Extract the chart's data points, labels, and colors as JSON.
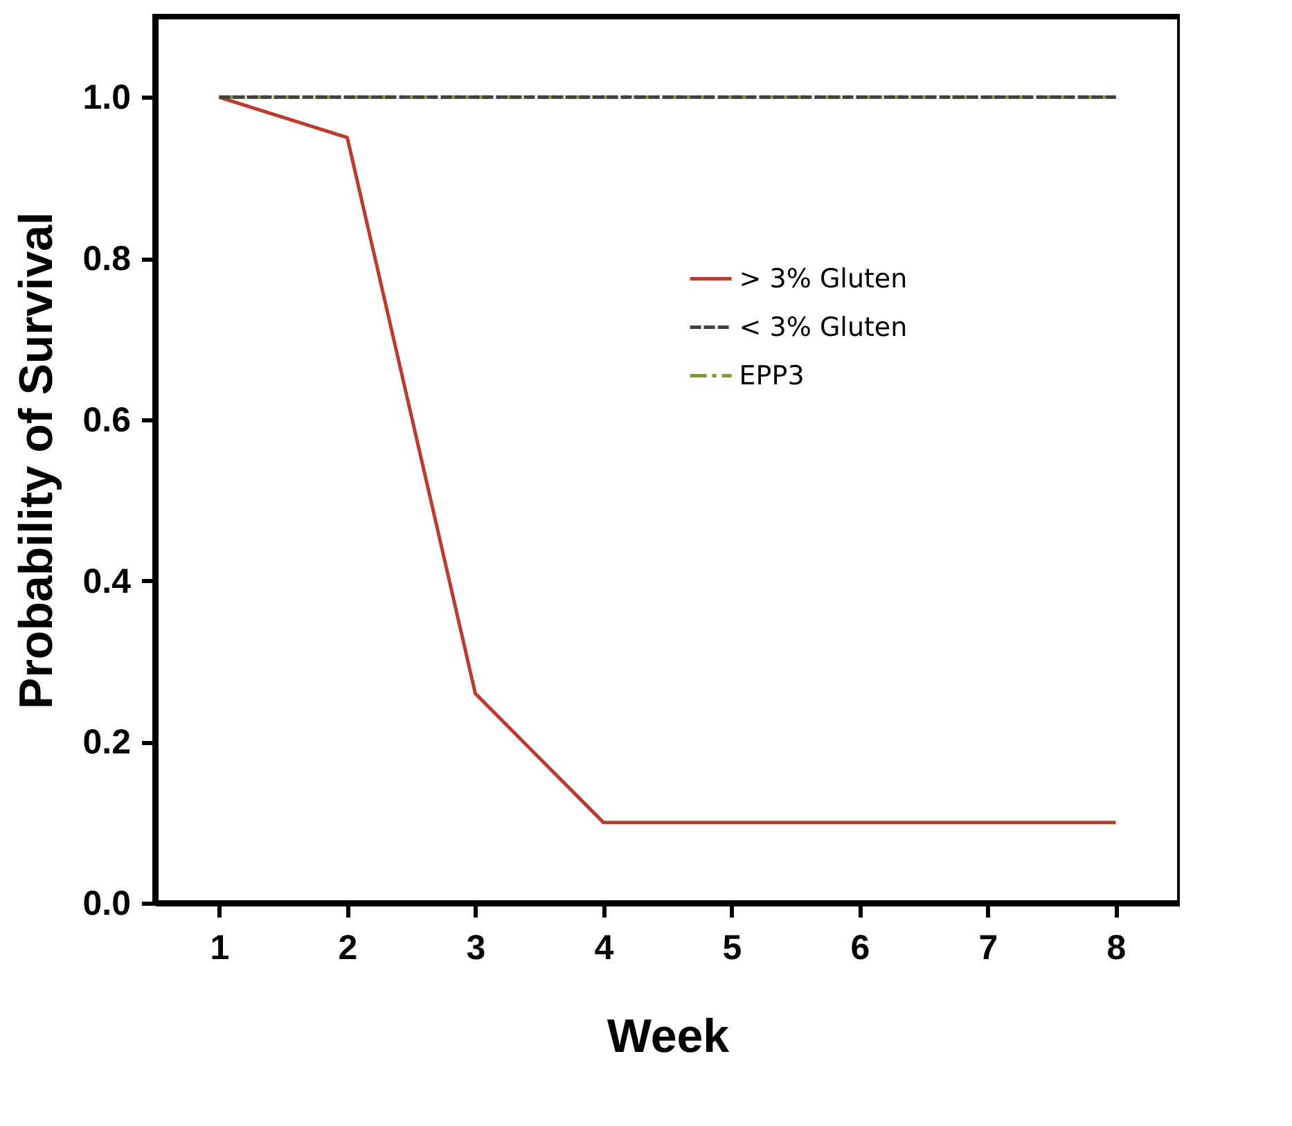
{
  "chart_data": {
    "type": "line",
    "xlabel": "Week",
    "ylabel": "Probability of Survival",
    "x": [
      1,
      2,
      3,
      4,
      5,
      6,
      7,
      8
    ],
    "series": [
      {
        "name": "> 3% Gluten",
        "color": "#c0392b",
        "line_style": "solid",
        "values": [
          1.0,
          0.95,
          0.26,
          0.1,
          0.1,
          0.1,
          0.1,
          0.1
        ]
      },
      {
        "name": "< 3% Gluten",
        "color": "#404040",
        "line_style": "dashed",
        "values": [
          1.0,
          1.0,
          1.0,
          1.0,
          1.0,
          1.0,
          1.0,
          1.0
        ]
      },
      {
        "name": "EPP3",
        "color": "#7a9a3c",
        "line_style": "dashdot",
        "values": [
          1.0,
          1.0,
          1.0,
          1.0,
          1.0,
          1.0,
          1.0,
          1.0
        ]
      }
    ],
    "xlim": [
      0.5,
      8.5
    ],
    "ylim": [
      0,
      1.1
    ],
    "xticks": [
      1,
      2,
      3,
      4,
      5,
      6,
      7,
      8
    ],
    "yticks": [
      {
        "value": 0,
        "label": "0.0"
      },
      0.2,
      0.4,
      0.6,
      0.8,
      {
        "value": 1,
        "label": "1.0"
      }
    ],
    "legend": "right",
    "grid": false,
    "marker": "none"
  }
}
